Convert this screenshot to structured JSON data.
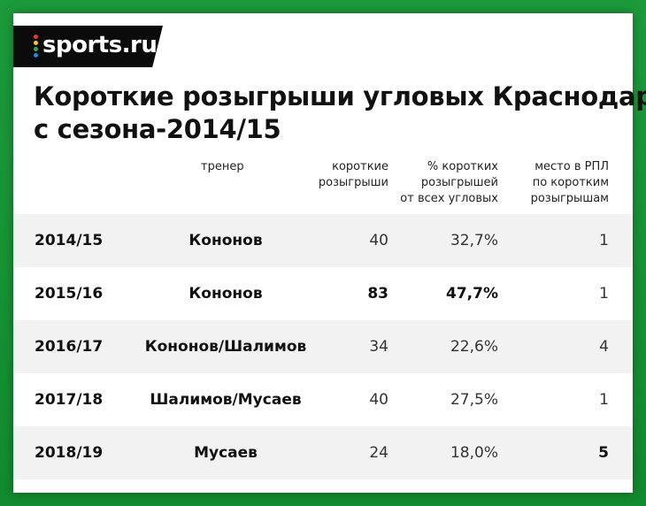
{
  "logo": {
    "text": "sports.ru",
    "dot_colors": [
      "#e53935",
      "#fbc02d",
      "#43a047",
      "#1e88e5"
    ]
  },
  "title": {
    "line1": "Короткие розыгрыши угловых Краснодара",
    "line2": "с сезона-2014/15"
  },
  "headers": {
    "coach": "тренер",
    "short": "короткие\nрозыгрыши",
    "pct": "% коротких\nрозыгрышей\nот всех угловых",
    "place": "место в РПЛ\nпо коротким\nрозыгрышам"
  },
  "rows": [
    {
      "season": "2014/15",
      "coach": "Кононов",
      "short": "40",
      "pct": "32,7%",
      "place": "1"
    },
    {
      "season": "2015/16",
      "coach": "Кононов",
      "short": "83",
      "pct": "47,7%",
      "place": "1"
    },
    {
      "season": "2016/17",
      "coach": "Кононов/Шалимов",
      "short": "34",
      "pct": "22,6%",
      "place": "4"
    },
    {
      "season": "2017/18",
      "coach": "Шалимов/Мусаев",
      "short": "40",
      "pct": "27,5%",
      "place": "1"
    },
    {
      "season": "2018/19",
      "coach": "Мусаев",
      "short": "24",
      "pct": "18,0%",
      "place": "5"
    }
  ],
  "colors": {
    "background": "#1c9a3b",
    "row_shade": "#f2f2f2",
    "logo_bg": "#0b0b0b"
  }
}
